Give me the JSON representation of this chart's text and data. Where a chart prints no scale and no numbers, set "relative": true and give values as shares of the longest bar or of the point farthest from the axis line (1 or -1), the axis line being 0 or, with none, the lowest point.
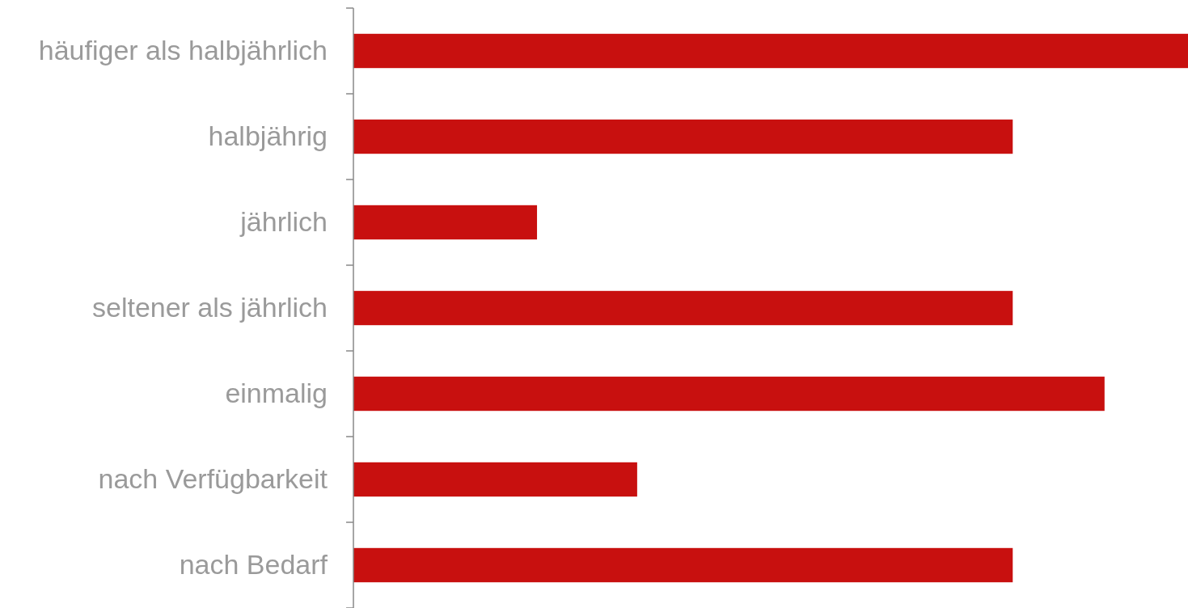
{
  "chart_data": {
    "type": "bar",
    "orientation": "horizontal",
    "relative": true,
    "categories": [
      "häufiger als halbjährlich",
      "halbjährig",
      "jährlich",
      "seltener als jährlich",
      "einmalig",
      "nach Verfügbarkeit",
      "nach Bedarf"
    ],
    "values": [
      1,
      0.79,
      0.22,
      0.79,
      0.9,
      0.34,
      0.79
    ],
    "color": "#c8100f"
  }
}
